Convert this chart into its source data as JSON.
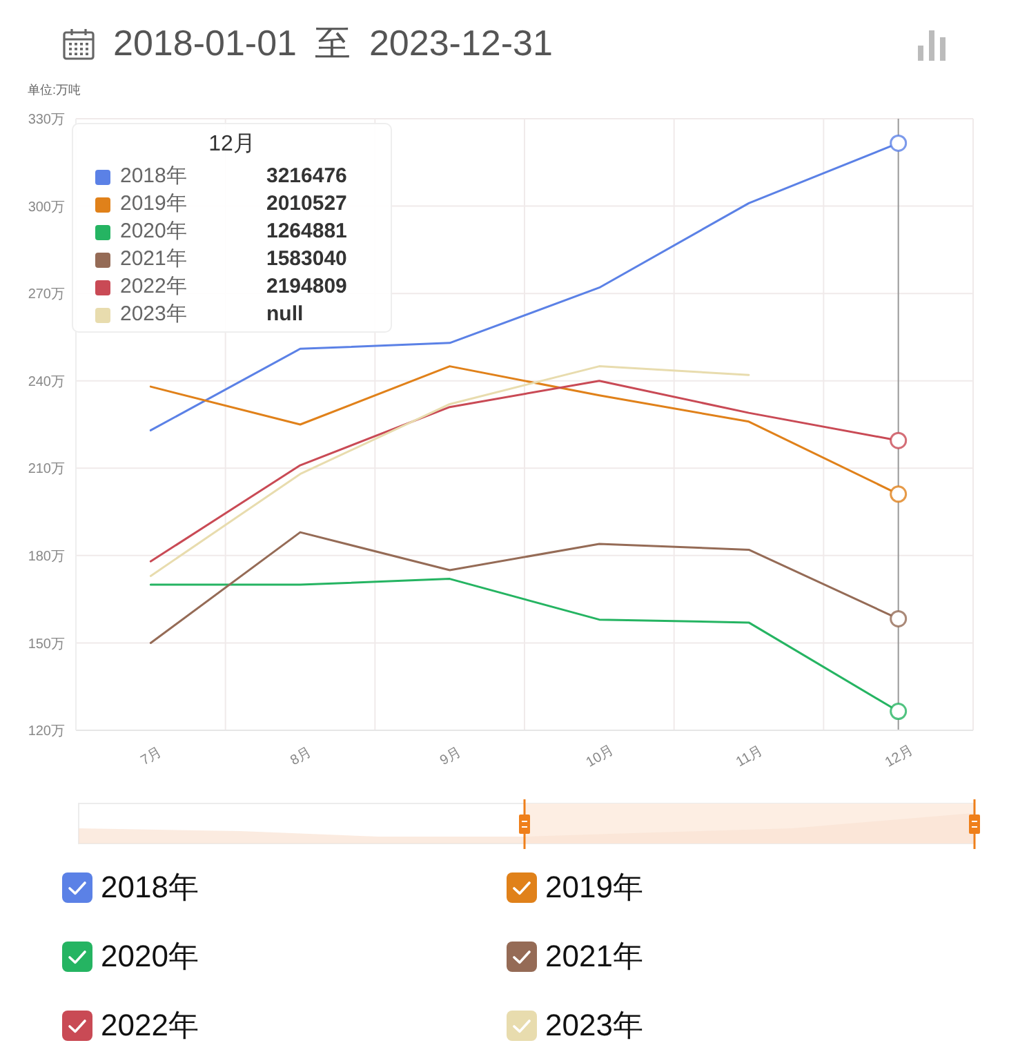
{
  "chart_data": {
    "type": "line",
    "title": "2018-01-01 至 2023-12-31",
    "ylabel": "单位:万吨",
    "categories": [
      "7月",
      "8月",
      "9月",
      "10月",
      "11月",
      "12月"
    ],
    "series": [
      {
        "name": "2018年",
        "color": "#5b81e6",
        "values": [
          223,
          251,
          253,
          272,
          301,
          321.6
        ]
      },
      {
        "name": "2019年",
        "color": "#e0811a",
        "values": [
          238,
          225,
          245,
          235,
          226,
          201.1
        ]
      },
      {
        "name": "2020年",
        "color": "#25b462",
        "values": [
          170,
          170,
          172,
          158,
          157,
          126.5
        ]
      },
      {
        "name": "2021年",
        "color": "#956b56",
        "values": [
          150,
          188,
          175,
          184,
          182,
          158.3
        ]
      },
      {
        "name": "2022年",
        "color": "#c94a55",
        "values": [
          178,
          211,
          231,
          240,
          229,
          219.5
        ]
      },
      {
        "name": "2023年",
        "color": "#e8dcae",
        "values": [
          173,
          208,
          232,
          245,
          242,
          null
        ]
      }
    ],
    "ylim": [
      120,
      330
    ],
    "yticks": [
      {
        "value": 120,
        "label": "120万"
      },
      {
        "value": 150,
        "label": "150万"
      },
      {
        "value": 180,
        "label": "180万"
      },
      {
        "value": 210,
        "label": "210万"
      },
      {
        "value": 240,
        "label": "240万"
      },
      {
        "value": 270,
        "label": "270万"
      },
      {
        "value": 300,
        "label": "300万"
      },
      {
        "value": 330,
        "label": "330万"
      }
    ],
    "grid": true,
    "legend": "bottom",
    "ref_lines": [
      {
        "axis": "x",
        "value": "12月",
        "color": "#999999"
      }
    ],
    "annotations": [
      "12月",
      "3216476",
      "2010527",
      "1264881",
      "1583040",
      "2194809",
      "null"
    ]
  }
}
